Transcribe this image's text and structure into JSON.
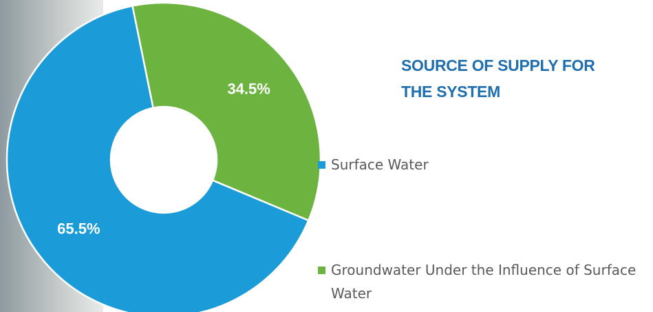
{
  "chart_data": {
    "type": "donut",
    "title": "SOURCE OF SUPPLY FOR THE SYSTEM",
    "categories": [
      "Surface Water",
      "Groundwater Under the Influence of Surface Water"
    ],
    "values": [
      65.5,
      34.5
    ],
    "value_labels": [
      "65.5%",
      "34.5%"
    ],
    "colors": [
      "#1b9bd8",
      "#6cb33f"
    ],
    "legend": "right"
  }
}
